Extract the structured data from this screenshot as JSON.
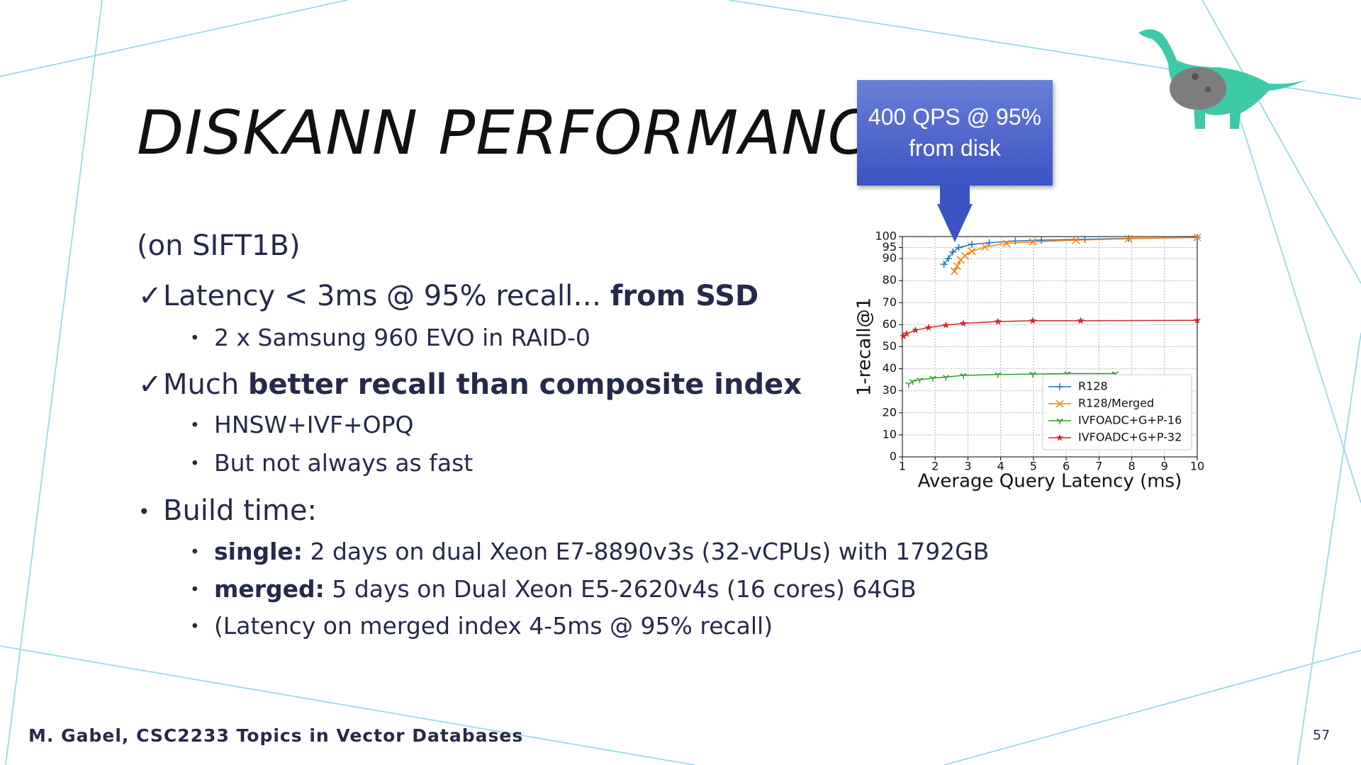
{
  "slide": {
    "title": "DISKANN PERFORMANCE",
    "callout": [
      "400 QPS @ 95%",
      "from disk"
    ],
    "items": [
      {
        "level": 0,
        "marker": "",
        "runs": [
          {
            "text": "(on SIFT1B)",
            "bold": false
          }
        ]
      },
      {
        "level": 0,
        "marker": "✓",
        "runs": [
          {
            "text": "Latency < 3ms @ 95% recall… ",
            "bold": false
          },
          {
            "text": "from SSD",
            "bold": true
          }
        ]
      },
      {
        "level": 1,
        "marker": "•",
        "runs": [
          {
            "text": "2 x Samsung 960 EVO in RAID-0",
            "bold": false
          }
        ]
      },
      {
        "level": 0,
        "marker": "✓",
        "runs": [
          {
            "text": "Much ",
            "bold": false
          },
          {
            "text": "better recall than composite index",
            "bold": true
          }
        ]
      },
      {
        "level": 1,
        "marker": "•",
        "runs": [
          {
            "text": "HNSW+IVF+OPQ",
            "bold": false
          }
        ]
      },
      {
        "level": 1,
        "marker": "•",
        "runs": [
          {
            "text": "But not always as fast",
            "bold": false
          }
        ]
      },
      {
        "level": 0,
        "marker": "•",
        "runs": [
          {
            "text": "Build time:",
            "bold": false
          }
        ]
      },
      {
        "level": 1,
        "marker": "•",
        "runs": [
          {
            "text": "single:",
            "bold": true
          },
          {
            "text": " 2 days on dual Xeon E7-8890v3s (32-vCPUs) with 1792GB",
            "bold": false
          }
        ]
      },
      {
        "level": 1,
        "marker": "•",
        "runs": [
          {
            "text": "merged:",
            "bold": true
          },
          {
            "text": " 5 days on Dual Xeon E5-2620v4s (16 cores) 64GB",
            "bold": false
          }
        ]
      },
      {
        "level": 1,
        "marker": "•",
        "runs": [
          {
            "text": "(Latency on merged index 4-5ms @ 95% recall)",
            "bold": false
          }
        ]
      }
    ],
    "footer": "M. Gabel, CSC2233 Topics in Vector Databases",
    "page_number": "57"
  },
  "chart_data": {
    "type": "line",
    "x_label": "Average Query Latency (ms)",
    "y_label": "1-recall@1",
    "xlim": [
      1,
      10
    ],
    "xticks": [
      1,
      2,
      3,
      4,
      5,
      6,
      7,
      8,
      9,
      10
    ],
    "ylim": [
      0,
      100
    ],
    "yticks": [
      0,
      10,
      20,
      30,
      40,
      50,
      60,
      70,
      80,
      90,
      95,
      100
    ],
    "grid": true,
    "legend": "lower right",
    "series": [
      {
        "name": "R128",
        "color": "#1f77b4",
        "marker": "+",
        "x": [
          2.27,
          2.4,
          2.54,
          2.72,
          3.12,
          3.65,
          4.45,
          5.24,
          6.57,
          7.9,
          10
        ],
        "values": [
          87.4,
          90,
          93,
          95,
          96.5,
          97.2,
          98,
          98.4,
          98.8,
          99.2,
          99.6
        ]
      },
      {
        "name": "R128/Merged",
        "color": "#ff7f0e",
        "marker": "x",
        "x": [
          2.59,
          2.67,
          2.78,
          2.91,
          3.12,
          3.52,
          4.18,
          4.98,
          6.3,
          7.9,
          10
        ],
        "values": [
          84.3,
          86.6,
          89.4,
          91.3,
          93.3,
          95.3,
          96.9,
          97.6,
          98.4,
          99,
          99.6
        ]
      },
      {
        "name": "IVFOADC+G+P-16",
        "color": "#2ca02c",
        "marker": "1",
        "x": [
          1.19,
          1.32,
          1.53,
          1.93,
          2.33,
          2.86,
          3.92,
          4.98,
          6.04,
          7.5
        ],
        "values": [
          33,
          34.3,
          35,
          35.8,
          36.2,
          37,
          37.4,
          37.6,
          37.8,
          37.8
        ]
      },
      {
        "name": "IVFOADC+G+P-32",
        "color": "#d62728",
        "marker": "*",
        "x": [
          1.03,
          1.13,
          1.4,
          1.8,
          2.33,
          2.86,
          3.92,
          4.98,
          6.44,
          10
        ],
        "values": [
          54.7,
          55.9,
          57.5,
          58.7,
          59.8,
          60.6,
          61.4,
          61.8,
          61.8,
          62
        ]
      }
    ]
  }
}
